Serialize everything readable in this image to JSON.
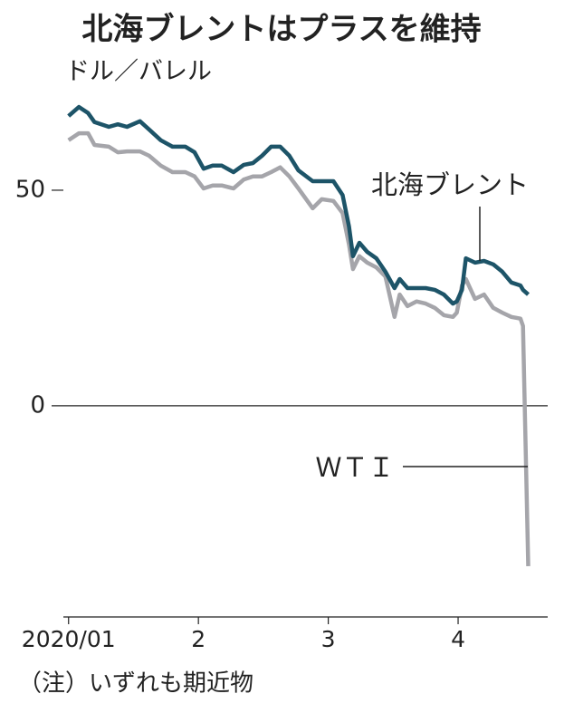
{
  "chart_data": {
    "type": "line",
    "title": "北海ブレントはプラスを維持",
    "y_unit": "ドル／バレル",
    "note": "（注）いずれも期近物",
    "x": [
      1.0,
      1.08,
      1.15,
      1.2,
      1.31,
      1.38,
      1.45,
      1.55,
      1.62,
      1.71,
      1.8,
      1.9,
      1.97,
      2.04,
      2.11,
      2.18,
      2.27,
      2.35,
      2.42,
      2.49,
      2.56,
      2.63,
      2.7,
      2.77,
      2.88,
      2.95,
      3.04,
      3.11,
      3.16,
      3.19,
      3.24,
      3.3,
      3.37,
      3.44,
      3.51,
      3.55,
      3.61,
      3.68,
      3.75,
      3.82,
      3.89,
      3.96,
      3.99,
      4.03,
      4.06,
      4.13,
      4.2,
      4.27,
      4.34,
      4.41,
      4.48,
      4.5,
      4.54
    ],
    "series": [
      {
        "name": "北海ブレント",
        "color": "#1d5468",
        "values": [
          67.2,
          69.3,
          67.9,
          65.8,
          64.7,
          65.3,
          64.7,
          66,
          64.1,
          61.6,
          60.1,
          60.1,
          58.8,
          55.0,
          55.7,
          55.7,
          54.2,
          55.9,
          56.3,
          58,
          60.1,
          60.1,
          58,
          54.6,
          52.1,
          52.1,
          52.1,
          48.9,
          41.6,
          34.7,
          37.8,
          35.7,
          34.2,
          31.1,
          27.3,
          29.4,
          27.3,
          27.3,
          27.3,
          26.9,
          25.8,
          23.7,
          24.2,
          26.9,
          34.2,
          33.2,
          33.6,
          32.8,
          31.1,
          28.6,
          27.9,
          26.9,
          25.8
        ]
      },
      {
        "name": "ＷＴＩ",
        "color": "#a5a5aa",
        "values": [
          61.6,
          63.2,
          63.2,
          60.5,
          60.1,
          58.8,
          59,
          59,
          58,
          55.7,
          54.2,
          54.2,
          53.2,
          50.4,
          51.1,
          51.1,
          50.4,
          52.5,
          53.2,
          53.2,
          54.2,
          55.3,
          53.2,
          50.4,
          45.8,
          47.9,
          47.5,
          44.7,
          37.4,
          31.7,
          34.7,
          33.2,
          32.1,
          30.0,
          20.6,
          25.8,
          23.1,
          24.2,
          23.7,
          22.7,
          21.0,
          20.6,
          21.6,
          27.9,
          29.4,
          24.8,
          25.8,
          22.7,
          21.6,
          20.6,
          20.2,
          18.5,
          -37.2
        ]
      }
    ],
    "xlim": [
      0.96,
      4.69
    ],
    "xticks": [
      {
        "value": 1,
        "label": "2020/01"
      },
      2,
      3,
      4
    ],
    "ylim": [
      -49,
      75
    ],
    "yticks": [
      0,
      50
    ]
  }
}
